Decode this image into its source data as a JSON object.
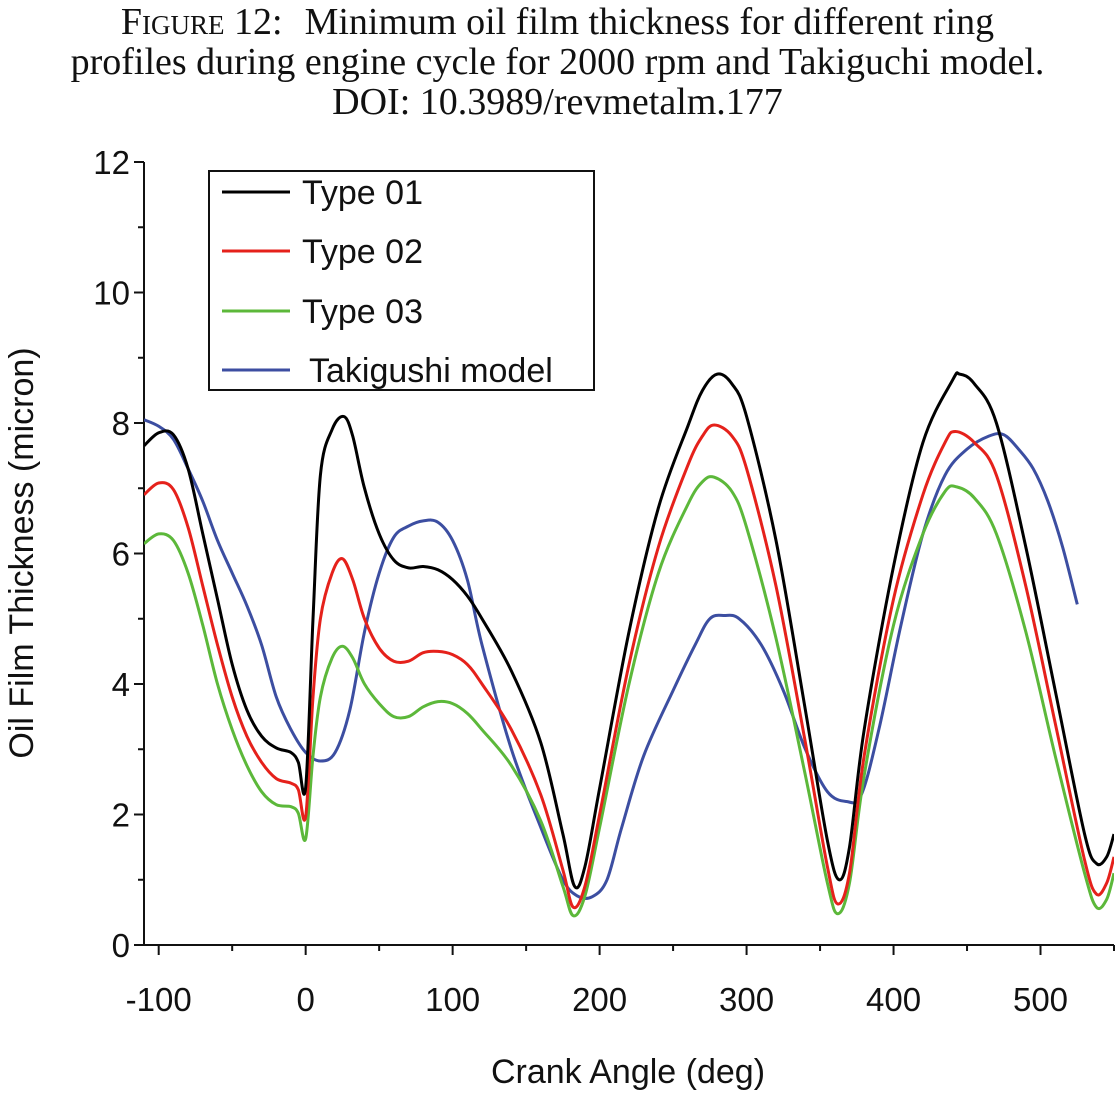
{
  "caption": {
    "label": "Figure 12:",
    "line1": "Minimum oil film thickness for different ring",
    "line2": "profiles during engine cycle for 2000 rpm and Takiguchi model.",
    "line3": "DOI: 10.3989/revmetalm.177"
  },
  "chart_data": {
    "type": "line",
    "xlabel": "Crank Angle (deg)",
    "ylabel": "Oil Film Thickness (micron)",
    "xlim": [
      -110,
      550
    ],
    "ylim": [
      0,
      12
    ],
    "xticks": [
      -100,
      0,
      100,
      200,
      300,
      400,
      500
    ],
    "xtick_labels": [
      "-100",
      "0",
      "100",
      "200",
      "300",
      "400",
      "500"
    ],
    "yticks": [
      0,
      2,
      4,
      6,
      8,
      10,
      12
    ],
    "ytick_labels": [
      "0",
      "2",
      "4",
      "6",
      "8",
      "10",
      "12"
    ],
    "grid": false,
    "legend_position": "top-left",
    "series": [
      {
        "name": "Type 01",
        "color": "#000000",
        "points": [
          [
            -110,
            7.65
          ],
          [
            -100,
            7.85
          ],
          [
            -90,
            7.82
          ],
          [
            -80,
            7.3
          ],
          [
            -70,
            6.3
          ],
          [
            -60,
            5.3
          ],
          [
            -50,
            4.3
          ],
          [
            -40,
            3.6
          ],
          [
            -30,
            3.2
          ],
          [
            -20,
            3.02
          ],
          [
            -10,
            2.95
          ],
          [
            -5,
            2.8
          ],
          [
            0,
            2.42
          ],
          [
            5,
            5.0
          ],
          [
            10,
            7.2
          ],
          [
            18,
            7.9
          ],
          [
            26,
            8.1
          ],
          [
            32,
            7.8
          ],
          [
            40,
            7.0
          ],
          [
            50,
            6.3
          ],
          [
            60,
            5.9
          ],
          [
            70,
            5.78
          ],
          [
            80,
            5.8
          ],
          [
            90,
            5.75
          ],
          [
            100,
            5.6
          ],
          [
            110,
            5.35
          ],
          [
            120,
            5.0
          ],
          [
            140,
            4.2
          ],
          [
            160,
            3.1
          ],
          [
            175,
            1.7
          ],
          [
            183,
            0.9
          ],
          [
            190,
            1.2
          ],
          [
            200,
            2.4
          ],
          [
            220,
            4.8
          ],
          [
            240,
            6.7
          ],
          [
            260,
            7.95
          ],
          [
            270,
            8.5
          ],
          [
            280,
            8.75
          ],
          [
            290,
            8.6
          ],
          [
            300,
            8.1
          ],
          [
            320,
            6.2
          ],
          [
            340,
            3.6
          ],
          [
            355,
            1.6
          ],
          [
            363,
            1.0
          ],
          [
            370,
            1.5
          ],
          [
            380,
            3.3
          ],
          [
            400,
            5.8
          ],
          [
            420,
            7.7
          ],
          [
            440,
            8.65
          ],
          [
            445,
            8.75
          ],
          [
            455,
            8.6
          ],
          [
            470,
            8.0
          ],
          [
            490,
            6.1
          ],
          [
            510,
            3.9
          ],
          [
            530,
            1.7
          ],
          [
            538,
            1.25
          ],
          [
            545,
            1.35
          ],
          [
            550,
            1.7
          ]
        ]
      },
      {
        "name": "Type 02",
        "color": "#e5211b",
        "points": [
          [
            -110,
            6.9
          ],
          [
            -100,
            7.08
          ],
          [
            -90,
            6.98
          ],
          [
            -80,
            6.4
          ],
          [
            -70,
            5.5
          ],
          [
            -60,
            4.6
          ],
          [
            -50,
            3.8
          ],
          [
            -40,
            3.2
          ],
          [
            -30,
            2.8
          ],
          [
            -20,
            2.55
          ],
          [
            -10,
            2.48
          ],
          [
            -5,
            2.38
          ],
          [
            0,
            1.97
          ],
          [
            5,
            3.8
          ],
          [
            10,
            5.0
          ],
          [
            18,
            5.7
          ],
          [
            25,
            5.92
          ],
          [
            32,
            5.6
          ],
          [
            40,
            5.0
          ],
          [
            50,
            4.55
          ],
          [
            60,
            4.35
          ],
          [
            70,
            4.35
          ],
          [
            80,
            4.48
          ],
          [
            90,
            4.5
          ],
          [
            100,
            4.45
          ],
          [
            110,
            4.3
          ],
          [
            120,
            4.0
          ],
          [
            140,
            3.3
          ],
          [
            160,
            2.3
          ],
          [
            175,
            1.15
          ],
          [
            182,
            0.58
          ],
          [
            190,
            0.9
          ],
          [
            200,
            2.0
          ],
          [
            220,
            4.3
          ],
          [
            240,
            6.1
          ],
          [
            260,
            7.35
          ],
          [
            270,
            7.8
          ],
          [
            278,
            7.97
          ],
          [
            290,
            7.8
          ],
          [
            300,
            7.3
          ],
          [
            320,
            5.5
          ],
          [
            340,
            3.1
          ],
          [
            355,
            1.2
          ],
          [
            362,
            0.63
          ],
          [
            370,
            1.1
          ],
          [
            380,
            2.9
          ],
          [
            400,
            5.3
          ],
          [
            420,
            6.9
          ],
          [
            435,
            7.7
          ],
          [
            442,
            7.87
          ],
          [
            455,
            7.7
          ],
          [
            470,
            7.2
          ],
          [
            490,
            5.5
          ],
          [
            510,
            3.4
          ],
          [
            530,
            1.3
          ],
          [
            538,
            0.78
          ],
          [
            545,
            0.95
          ],
          [
            550,
            1.35
          ]
        ]
      },
      {
        "name": "Type 03",
        "color": "#5cb83a",
        "points": [
          [
            -110,
            6.15
          ],
          [
            -100,
            6.3
          ],
          [
            -90,
            6.2
          ],
          [
            -80,
            5.7
          ],
          [
            -70,
            4.9
          ],
          [
            -60,
            4.0
          ],
          [
            -50,
            3.3
          ],
          [
            -40,
            2.75
          ],
          [
            -30,
            2.35
          ],
          [
            -20,
            2.15
          ],
          [
            -10,
            2.12
          ],
          [
            -5,
            2.02
          ],
          [
            0,
            1.63
          ],
          [
            5,
            2.9
          ],
          [
            10,
            3.8
          ],
          [
            18,
            4.4
          ],
          [
            25,
            4.58
          ],
          [
            32,
            4.4
          ],
          [
            40,
            4.0
          ],
          [
            50,
            3.7
          ],
          [
            60,
            3.5
          ],
          [
            70,
            3.5
          ],
          [
            80,
            3.65
          ],
          [
            90,
            3.73
          ],
          [
            100,
            3.7
          ],
          [
            110,
            3.55
          ],
          [
            120,
            3.3
          ],
          [
            140,
            2.75
          ],
          [
            160,
            1.9
          ],
          [
            175,
            0.9
          ],
          [
            182,
            0.45
          ],
          [
            190,
            0.75
          ],
          [
            200,
            1.8
          ],
          [
            220,
            4.0
          ],
          [
            240,
            5.7
          ],
          [
            260,
            6.75
          ],
          [
            270,
            7.1
          ],
          [
            278,
            7.17
          ],
          [
            290,
            6.95
          ],
          [
            300,
            6.4
          ],
          [
            320,
            4.7
          ],
          [
            340,
            2.6
          ],
          [
            355,
            0.95
          ],
          [
            362,
            0.48
          ],
          [
            370,
            0.95
          ],
          [
            380,
            2.6
          ],
          [
            400,
            4.9
          ],
          [
            420,
            6.3
          ],
          [
            435,
            6.95
          ],
          [
            443,
            7.02
          ],
          [
            455,
            6.85
          ],
          [
            470,
            6.3
          ],
          [
            490,
            4.8
          ],
          [
            510,
            2.9
          ],
          [
            530,
            1.1
          ],
          [
            538,
            0.58
          ],
          [
            545,
            0.7
          ],
          [
            550,
            1.1
          ]
        ]
      },
      {
        "name": "Takigushi model",
        "color": "#3c4ea1",
        "points": [
          [
            -110,
            8.05
          ],
          [
            -100,
            7.95
          ],
          [
            -90,
            7.75
          ],
          [
            -80,
            7.3
          ],
          [
            -70,
            6.8
          ],
          [
            -60,
            6.2
          ],
          [
            -50,
            5.7
          ],
          [
            -40,
            5.2
          ],
          [
            -30,
            4.6
          ],
          [
            -20,
            3.8
          ],
          [
            -10,
            3.3
          ],
          [
            0,
            2.95
          ],
          [
            10,
            2.82
          ],
          [
            20,
            2.95
          ],
          [
            30,
            3.6
          ],
          [
            40,
            4.8
          ],
          [
            50,
            5.7
          ],
          [
            60,
            6.25
          ],
          [
            70,
            6.42
          ],
          [
            80,
            6.5
          ],
          [
            90,
            6.48
          ],
          [
            100,
            6.2
          ],
          [
            110,
            5.6
          ],
          [
            120,
            4.6
          ],
          [
            140,
            3.0
          ],
          [
            160,
            1.8
          ],
          [
            175,
            1.0
          ],
          [
            185,
            0.75
          ],
          [
            195,
            0.74
          ],
          [
            205,
            1.0
          ],
          [
            215,
            1.8
          ],
          [
            230,
            2.9
          ],
          [
            250,
            3.9
          ],
          [
            265,
            4.6
          ],
          [
            275,
            5.0
          ],
          [
            285,
            5.05
          ],
          [
            295,
            5.0
          ],
          [
            310,
            4.6
          ],
          [
            325,
            3.9
          ],
          [
            340,
            3.0
          ],
          [
            355,
            2.35
          ],
          [
            368,
            2.2
          ],
          [
            378,
            2.3
          ],
          [
            390,
            3.3
          ],
          [
            405,
            4.9
          ],
          [
            420,
            6.3
          ],
          [
            435,
            7.2
          ],
          [
            450,
            7.6
          ],
          [
            465,
            7.8
          ],
          [
            475,
            7.82
          ],
          [
            485,
            7.6
          ],
          [
            495,
            7.3
          ],
          [
            505,
            6.8
          ],
          [
            515,
            6.1
          ],
          [
            525,
            5.22
          ]
        ]
      }
    ]
  }
}
